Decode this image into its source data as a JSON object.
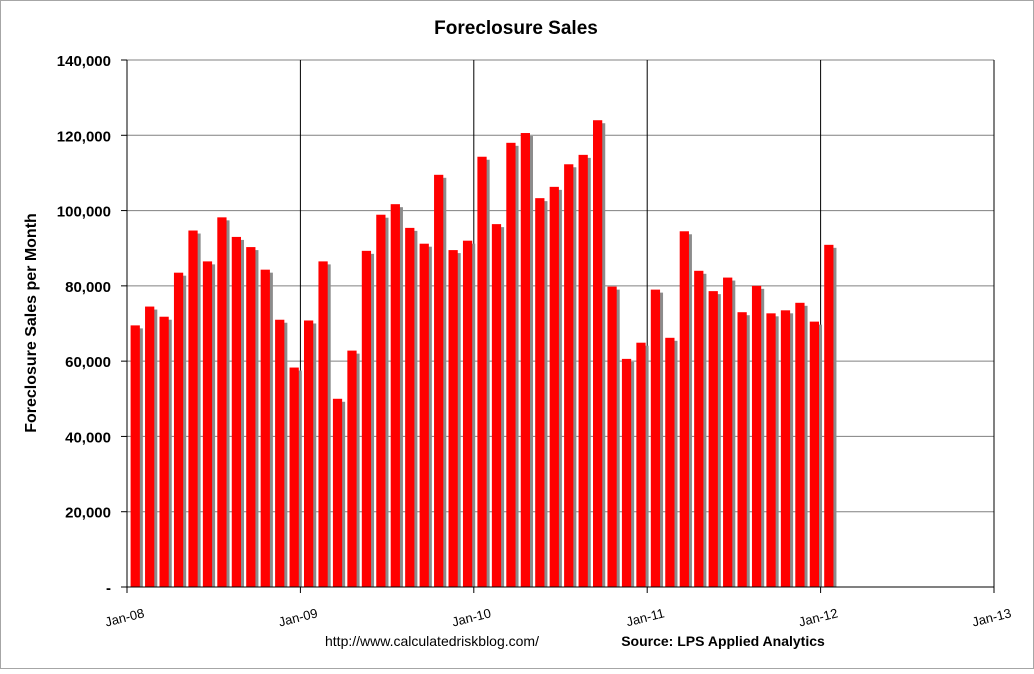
{
  "colors": {
    "bar": "#ff0000",
    "bar_shadow": "#8c8c8c",
    "grid": "#808080",
    "background": "#ffffff",
    "text": "#000000"
  },
  "footer": {
    "url": "http://www.calculatedriskblog.com/",
    "source": "Source: LPS Applied Analytics"
  },
  "chart_data": {
    "type": "bar",
    "title": "Foreclosure Sales",
    "xlabel": "",
    "ylabel": "Foreclosure Sales per Month",
    "ylim": [
      0,
      140000
    ],
    "yticks": [
      0,
      20000,
      40000,
      60000,
      80000,
      100000,
      120000,
      140000
    ],
    "ytick_labels": [
      "-",
      "20,000",
      "40,000",
      "60,000",
      "80,000",
      "100,000",
      "120,000",
      "140,000"
    ],
    "xticks": [
      "Jan-08",
      "Jan-09",
      "Jan-10",
      "Jan-11",
      "Jan-12",
      "Jan-13"
    ],
    "x_range": [
      "2008-01",
      "2013-01"
    ],
    "grid": true,
    "legend": "none",
    "categories": [
      "2008-01",
      "2008-02",
      "2008-03",
      "2008-04",
      "2008-05",
      "2008-06",
      "2008-07",
      "2008-08",
      "2008-09",
      "2008-10",
      "2008-11",
      "2008-12",
      "2009-01",
      "2009-02",
      "2009-03",
      "2009-04",
      "2009-05",
      "2009-06",
      "2009-07",
      "2009-08",
      "2009-09",
      "2009-10",
      "2009-11",
      "2009-12",
      "2010-01",
      "2010-02",
      "2010-03",
      "2010-04",
      "2010-05",
      "2010-06",
      "2010-07",
      "2010-08",
      "2010-09",
      "2010-10",
      "2010-11",
      "2010-12",
      "2011-01",
      "2011-02",
      "2011-03",
      "2011-04",
      "2011-05",
      "2011-06",
      "2011-07",
      "2011-08",
      "2011-09",
      "2011-10",
      "2011-11",
      "2011-12",
      "2012-01"
    ],
    "values": [
      69500,
      74500,
      71800,
      83500,
      94700,
      86500,
      98200,
      93000,
      90300,
      84300,
      71000,
      58300,
      70800,
      86500,
      50000,
      62800,
      89300,
      98900,
      101700,
      95400,
      91200,
      109500,
      89500,
      92000,
      114300,
      96400,
      118000,
      120600,
      103300,
      106300,
      112300,
      114800,
      124000,
      79800,
      60600,
      64900,
      79000,
      66200,
      94500,
      84000,
      78600,
      82200,
      73000,
      80000,
      72700,
      73500,
      75500,
      70500,
      90900
    ]
  }
}
